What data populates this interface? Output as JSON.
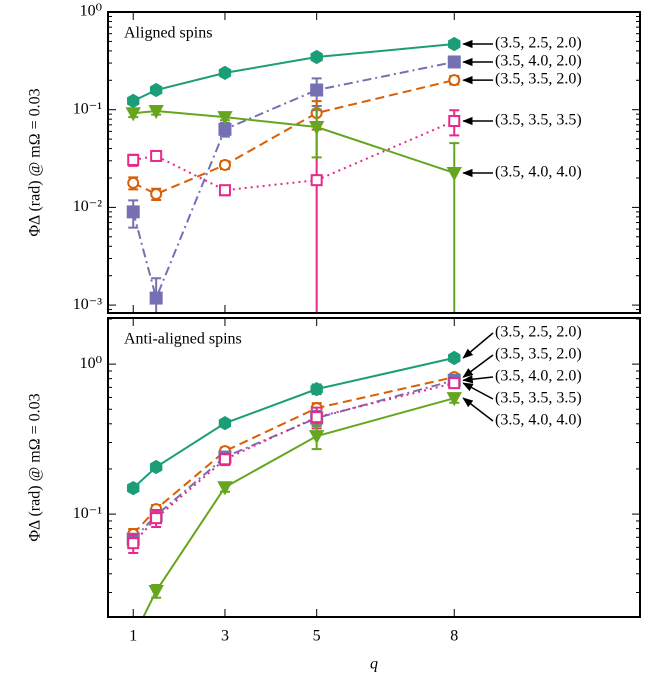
{
  "chart_data": [
    {
      "type": "line",
      "title": "Aligned spins",
      "y_label": "ΦΔ (rad) @ mΩ = 0.03",
      "log_y": true,
      "x": [
        1,
        1.5,
        3,
        5,
        8
      ],
      "xlim": [
        0.45,
        12.05
      ],
      "xticks": [
        1,
        3,
        5,
        8
      ],
      "ylim": [
        0.00083,
        1
      ],
      "yticks": [
        {
          "value": 0.001,
          "label": "10⁻³"
        },
        {
          "value": 0.01,
          "label": "10⁻²"
        },
        {
          "value": 0.1,
          "label": "10⁻¹"
        },
        {
          "value": 1,
          "label": "10⁰"
        }
      ],
      "series": [
        {
          "name": "(3.5, 2.5, 2.0)",
          "color": "#1b9e77",
          "marker": "hexagon",
          "dash": "solid",
          "values": [
            0.123,
            0.159,
            0.238,
            0.346,
            0.47
          ],
          "errors": [
            0.006,
            0.008,
            0.012,
            0.017,
            0.023
          ]
        },
        {
          "name": "(3.5, 4.0, 2.0)",
          "color": "#7570b3",
          "marker": "square",
          "dash": "dashdot",
          "values": [
            0.009,
            0.00118,
            0.063,
            0.159,
            0.308
          ],
          "errors": [
            0.0028,
            0.0007,
            0.01,
            0.05,
            0.015
          ]
        },
        {
          "name": "(3.5, 3.5, 2.0)",
          "color": "#d95f02",
          "marker": "circle-open",
          "dash": "dashed",
          "values": [
            0.0178,
            0.0137,
            0.0272,
            0.0925,
            0.201
          ],
          "errors": [
            0.0025,
            0.0018,
            0.0025,
            0.03,
            0.02
          ]
        },
        {
          "name": "(3.5, 3.5, 3.5)",
          "color": "#e7298a",
          "marker": "square-open",
          "dash": "dotted",
          "values": [
            0.0306,
            0.0336,
            0.015,
            0.019,
            0.0766
          ],
          "errors": [
            0.004,
            0.0035,
            0.0017,
            0.08,
            0.022
          ]
        },
        {
          "name": "(3.5, 4.0, 4.0)",
          "color": "#66a61e",
          "marker": "triangle-down",
          "dash": "solid",
          "values": [
            0.092,
            0.097,
            0.084,
            0.0665,
            0.0225
          ],
          "errors": [
            0.008,
            0.008,
            0.006,
            0.034,
            0.023
          ]
        }
      ]
    },
    {
      "type": "line",
      "title": "Anti-aligned spins",
      "y_label": "ΦΔ (rad) @ mΩ = 0.03",
      "x_label": "q",
      "log_y": true,
      "x": [
        1,
        1.5,
        3,
        5,
        8
      ],
      "xlim": [
        0.45,
        12.05
      ],
      "xticks": [
        1,
        3,
        5,
        8
      ],
      "ylim": [
        0.0206,
        2.03
      ],
      "yticks": [
        {
          "value": 0.1,
          "label": "10⁻¹"
        },
        {
          "value": 1,
          "label": "10⁰"
        }
      ],
      "series": [
        {
          "name": "(3.5, 2.5, 2.0)",
          "color": "#1b9e77",
          "marker": "hexagon",
          "dash": "solid",
          "values": [
            0.149,
            0.206,
            0.404,
            0.681,
            1.1
          ],
          "errors": [
            0.008,
            0.01,
            0.02,
            0.05,
            0.05
          ]
        },
        {
          "name": "(3.5, 3.5, 2.0)",
          "color": "#d95f02",
          "marker": "circle-open",
          "dash": "dashed",
          "values": [
            0.0736,
            0.108,
            0.263,
            0.509,
            0.819
          ],
          "errors": [
            0.006,
            0.007,
            0.015,
            0.04,
            0.04
          ]
        },
        {
          "name": "(3.5, 4.0, 2.0)",
          "color": "#7570b3",
          "marker": "square",
          "dash": "dashdot",
          "values": [
            0.068,
            0.098,
            0.24,
            0.437,
            0.78
          ],
          "errors": [
            0.005,
            0.006,
            0.015,
            0.05,
            0.04
          ]
        },
        {
          "name": "(3.5, 3.5, 3.5)",
          "color": "#e7298a",
          "marker": "square-open",
          "dash": "dotted",
          "values": [
            0.064,
            0.094,
            0.232,
            0.443,
            0.747
          ],
          "errors": [
            0.009,
            0.012,
            0.02,
            0.07,
            0.05
          ]
        },
        {
          "name": "(3.5, 4.0, 4.0)",
          "color": "#66a61e",
          "marker": "triangle-down",
          "dash": "solid",
          "values": [
            0.015,
            0.0307,
            0.151,
            0.331,
            0.593
          ],
          "errors": [
            0.003,
            0.003,
            0.01,
            0.06,
            0.04
          ]
        }
      ]
    }
  ]
}
